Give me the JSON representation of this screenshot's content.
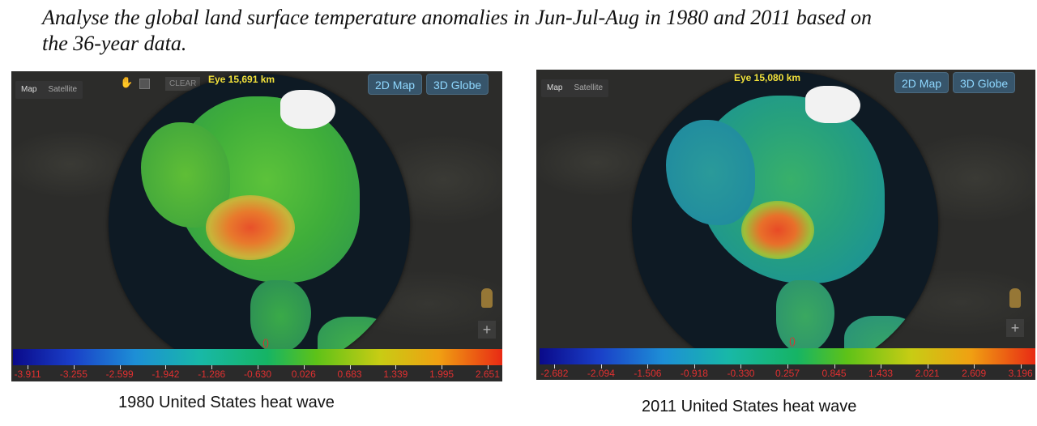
{
  "heading": {
    "line1": "Analyse the global land surface temperature anomalies in Jun-Jul-Aug in 1980 and 2011 based on",
    "line2": "the 36-year data."
  },
  "panels": {
    "left": {
      "map_tab": "Map",
      "satellite_tab": "Satellite",
      "clear_label": "CLEAR",
      "eye_label": "Eye  15,691 km",
      "btn_2d": "2D Map",
      "btn_3d": "3D Globe",
      "paren_label": "()",
      "zoom_in": "+",
      "colorbar_ticks": [
        "-3.911",
        "-3.255",
        "-2.599",
        "-1.942",
        "-1.286",
        "-0.630",
        "0.026",
        "0.683",
        "1.339",
        "1.995",
        "2.651"
      ],
      "caption": "1980 United States heat wave"
    },
    "right": {
      "map_tab": "Map",
      "satellite_tab": "Satellite",
      "eye_label": "Eye  15,080 km",
      "btn_2d": "2D Map",
      "btn_3d": "3D Globe",
      "paren_label": "()",
      "zoom_in": "+",
      "colorbar_ticks": [
        "-2.682",
        "-2.094",
        "-1.506",
        "-0.918",
        "-0.330",
        "0.257",
        "0.845",
        "1.433",
        "2.021",
        "2.609",
        "3.196"
      ],
      "caption": "2011 United States heat wave"
    }
  },
  "colors": {
    "colorbar_low": "#0a0a8a",
    "colorbar_high": "#e82a14",
    "eye_text": "#f2e13b",
    "tick_text": "#e03030",
    "button_bg": "#37556b"
  }
}
